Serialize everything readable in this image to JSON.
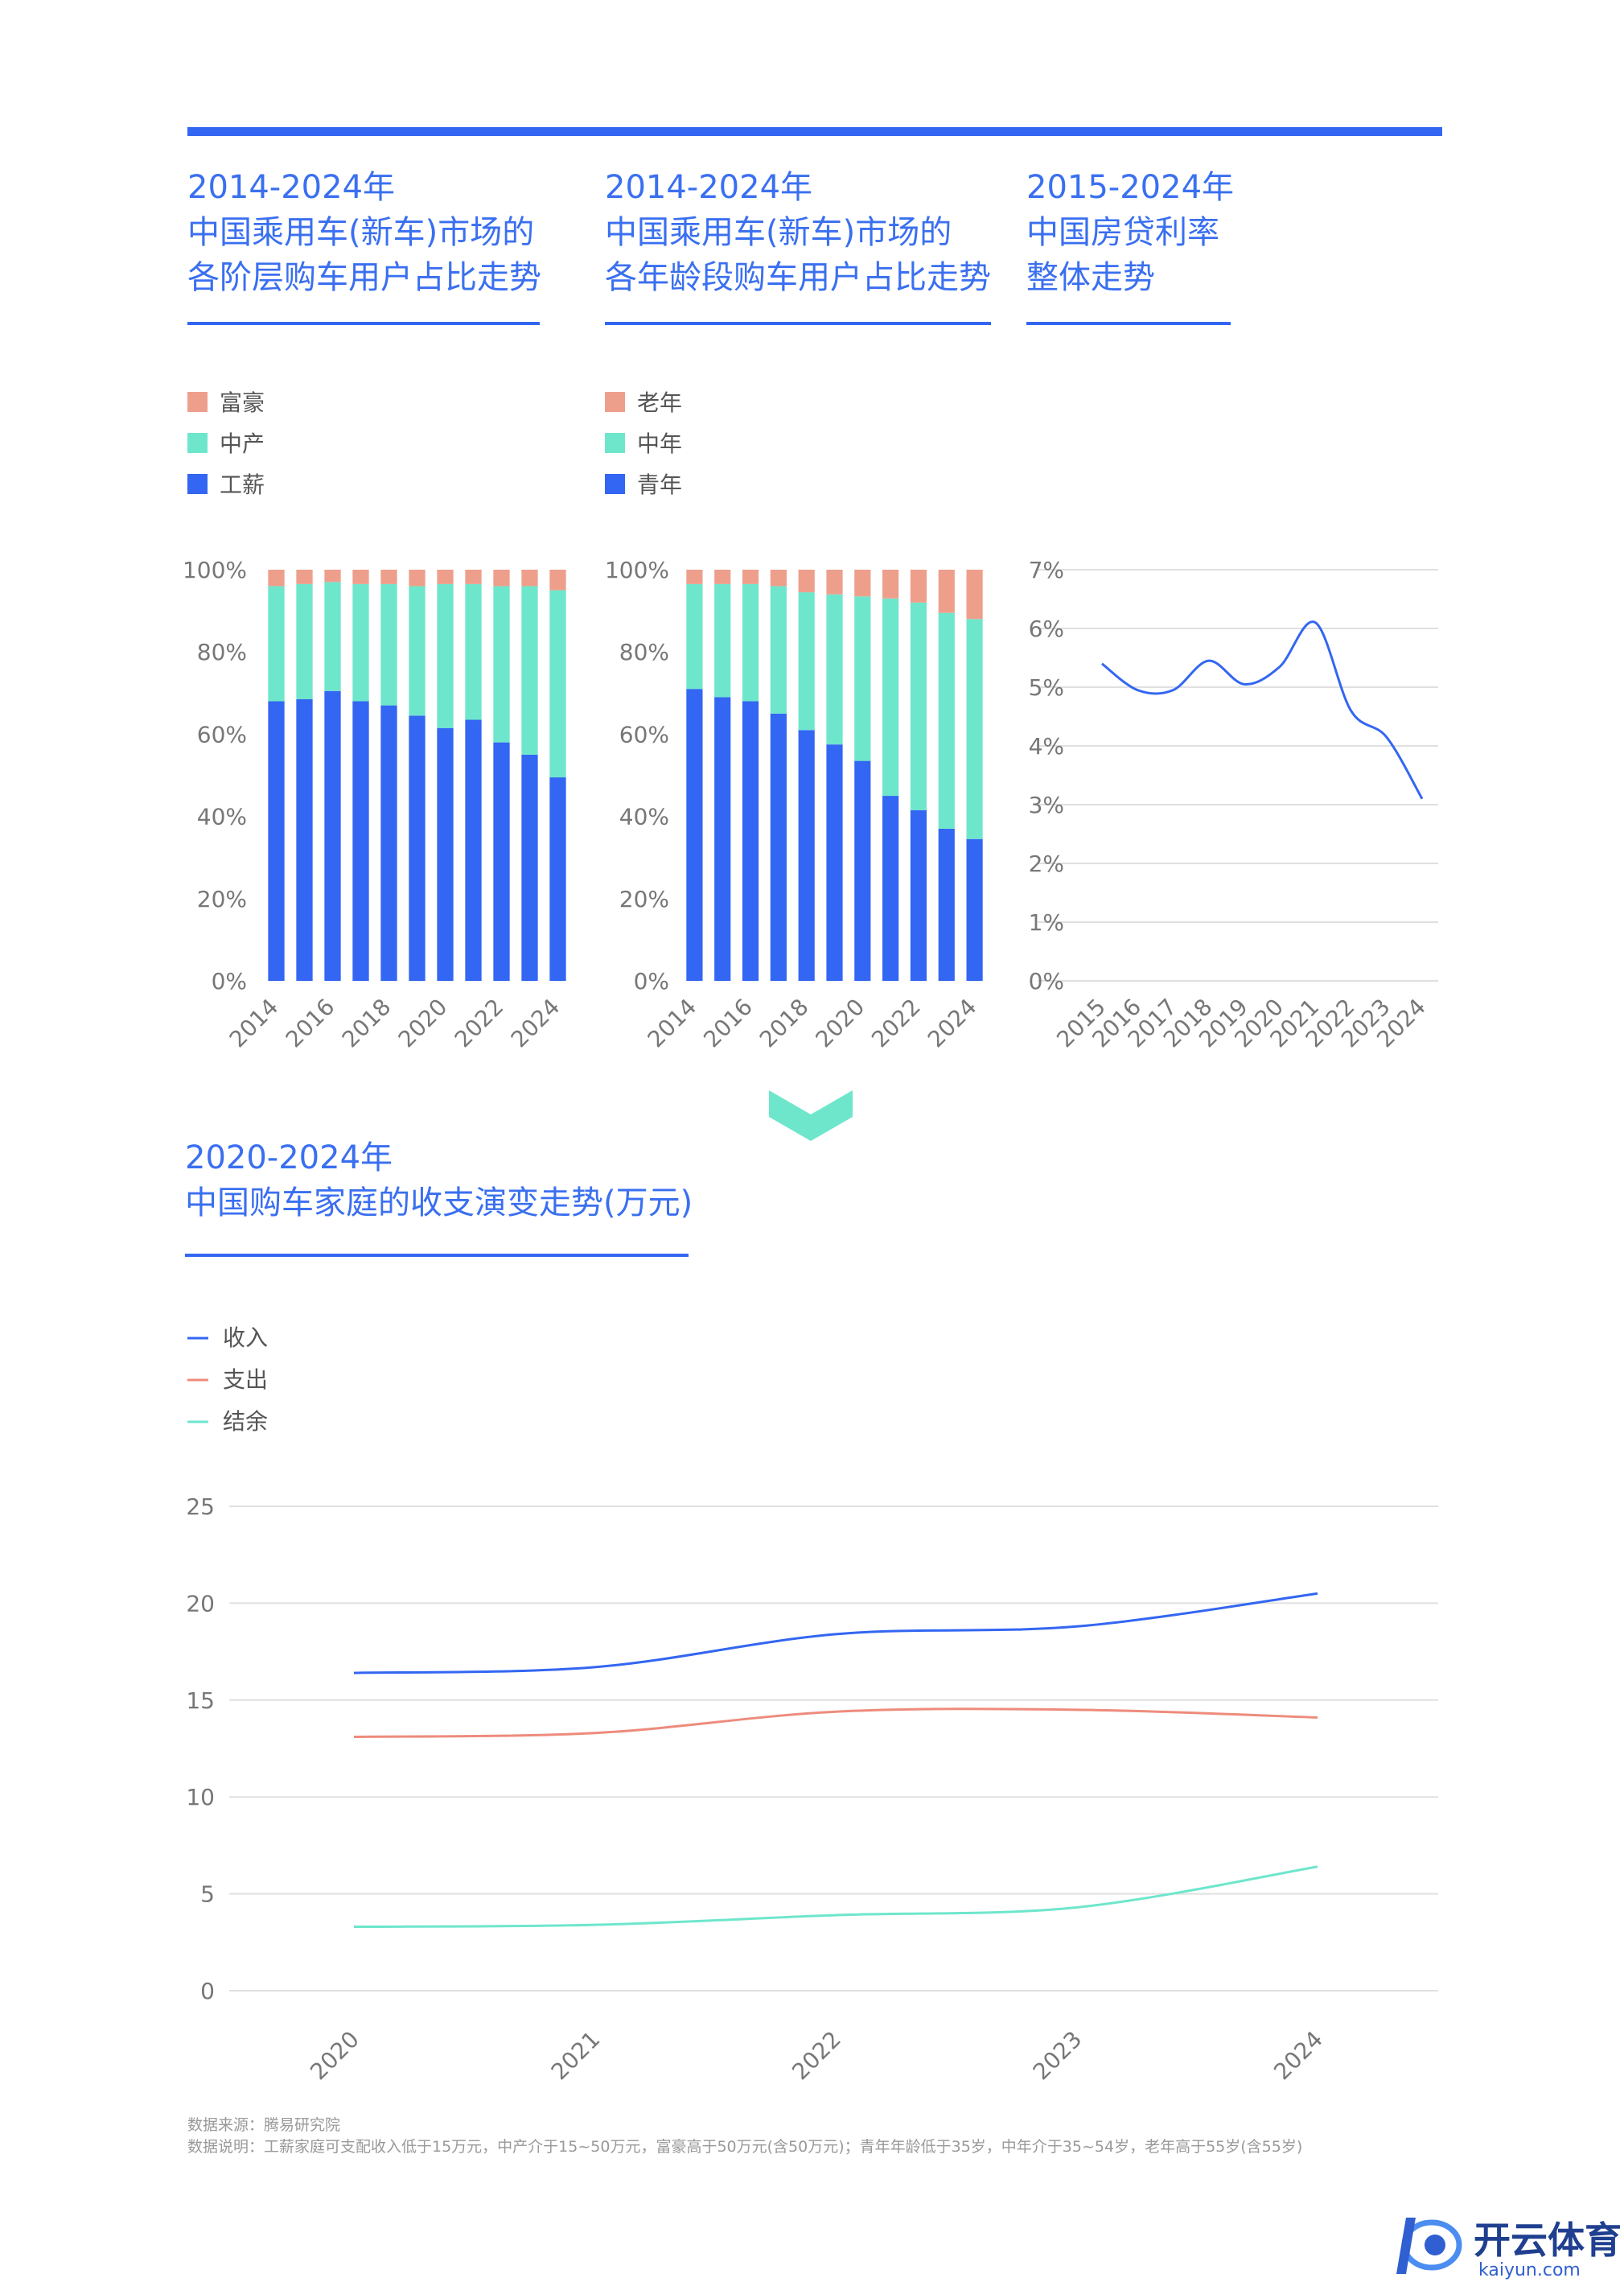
{
  "colors": {
    "accent": "#3366f2",
    "title": "#3a6ff0",
    "bar_low": "#3366f2",
    "bar_mid": "#6ee6cc",
    "bar_high": "#ee9f8c",
    "line_income": "#3366f2",
    "line_expense": "#ee8b7c",
    "line_surplus": "#6ee6cc",
    "arrow": "#6ee6cc"
  },
  "sections": {
    "top_titles": [
      [
        "2014-2024年",
        "中国乘用车(新车)市场的",
        "各阶层购车用户占比走势"
      ],
      [
        "2014-2024年",
        "中国乘用车(新车)市场的",
        "各年龄段购车用户占比走势"
      ],
      [
        "2015-2024年",
        "中国房贷利率",
        "整体走势"
      ]
    ],
    "bottom_title": [
      "2020-2024年",
      "中国购车家庭的收支演变走势(万元)"
    ]
  },
  "notes": {
    "source": "数据来源：腾易研究院",
    "explanation": "数据说明：工薪家庭可支配收入低于15万元，中产介于15~50万元，富豪高于50万元(含50万元)；青年年龄低于35岁，中年介于35~54岁，老年高于55岁(含55岁)"
  },
  "logo": {
    "cn": "开云体育",
    "en": "kaiyun.com"
  },
  "chart_data": [
    {
      "type": "bar",
      "stacked": true,
      "categories": [
        "2014",
        "2015",
        "2016",
        "2017",
        "2018",
        "2019",
        "2020",
        "2021",
        "2022",
        "2023",
        "2024"
      ],
      "x_tick_labels": [
        "2014",
        "",
        "2016",
        "",
        "2018",
        "",
        "2020",
        "",
        "2022",
        "",
        "2024"
      ],
      "series": [
        {
          "name": "工薪",
          "values": [
            68,
            68.5,
            70.5,
            68,
            67,
            64.5,
            61.5,
            63.5,
            58,
            55,
            49.5
          ]
        },
        {
          "name": "中产",
          "values": [
            28,
            28,
            26.5,
            28.5,
            29.5,
            31.5,
            35,
            33,
            38,
            41,
            45.5
          ]
        },
        {
          "name": "富豪",
          "values": [
            4,
            3.5,
            3,
            3.5,
            3.5,
            4,
            3.5,
            3.5,
            4,
            4,
            5
          ]
        }
      ],
      "legend_order": [
        "富豪",
        "中产",
        "工薪"
      ],
      "y_ticks": [
        "0%",
        "20%",
        "40%",
        "60%",
        "80%",
        "100%"
      ],
      "ylim": [
        0,
        100
      ]
    },
    {
      "type": "bar",
      "stacked": true,
      "categories": [
        "2014",
        "2015",
        "2016",
        "2017",
        "2018",
        "2019",
        "2020",
        "2021",
        "2022",
        "2023",
        "2024"
      ],
      "x_tick_labels": [
        "2014",
        "",
        "2016",
        "",
        "2018",
        "",
        "2020",
        "",
        "2022",
        "",
        "2024"
      ],
      "series": [
        {
          "name": "青年",
          "values": [
            71,
            69,
            68,
            65,
            61,
            57.5,
            53.5,
            45,
            41.5,
            37,
            34.5
          ]
        },
        {
          "name": "中年",
          "values": [
            25.5,
            27.5,
            28.5,
            31,
            33.5,
            36.5,
            40,
            48,
            50.5,
            52.5,
            53.5
          ]
        },
        {
          "name": "老年",
          "values": [
            3.5,
            3.5,
            3.5,
            4,
            5.5,
            6,
            6.5,
            7,
            8,
            10.5,
            12
          ]
        }
      ],
      "legend_order": [
        "老年",
        "中年",
        "青年"
      ],
      "y_ticks": [
        "0%",
        "20%",
        "40%",
        "60%",
        "80%",
        "100%"
      ],
      "ylim": [
        0,
        100
      ]
    },
    {
      "type": "line",
      "x": [
        "2015",
        "2016",
        "2017",
        "2018",
        "2019",
        "2020",
        "2021",
        "2022",
        "2023",
        "2024"
      ],
      "series": [
        {
          "values": [
            5.4,
            4.95,
            4.95,
            5.45,
            5.05,
            5.35,
            6.1,
            4.6,
            4.15,
            3.1
          ]
        }
      ],
      "y_ticks": [
        "0%",
        "1%",
        "2%",
        "3%",
        "4%",
        "5%",
        "6%",
        "7%"
      ],
      "ylim": [
        0,
        7
      ]
    },
    {
      "type": "line",
      "x": [
        "2020",
        "2021",
        "2022",
        "2023",
        "2024"
      ],
      "series": [
        {
          "name": "收入",
          "values": [
            16.4,
            16.7,
            18.4,
            18.8,
            20.5
          ]
        },
        {
          "name": "支出",
          "values": [
            13.1,
            13.3,
            14.4,
            14.5,
            14.1
          ]
        },
        {
          "name": "结余",
          "values": [
            3.3,
            3.4,
            3.9,
            4.3,
            6.4
          ]
        }
      ],
      "y_ticks": [
        "0",
        "5",
        "10",
        "15",
        "20",
        "25"
      ],
      "ylim": [
        0,
        25
      ]
    }
  ]
}
